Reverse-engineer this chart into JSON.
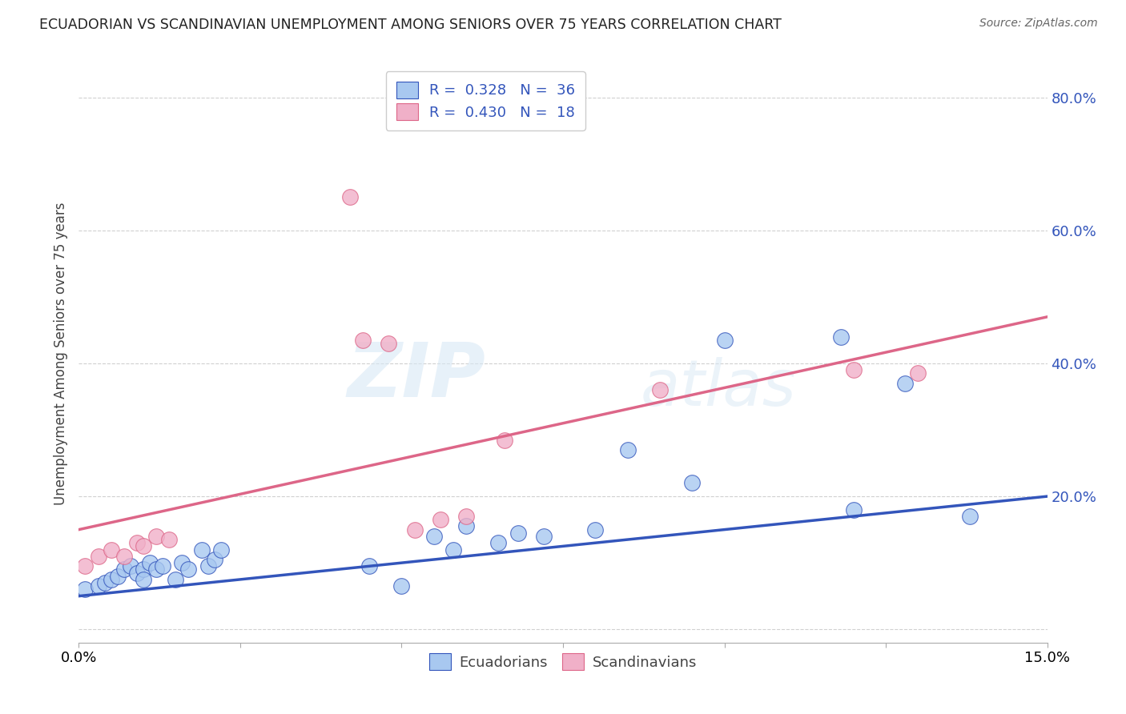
{
  "title": "ECUADORIAN VS SCANDINAVIAN UNEMPLOYMENT AMONG SENIORS OVER 75 YEARS CORRELATION CHART",
  "source": "Source: ZipAtlas.com",
  "ylabel": "Unemployment Among Seniors over 75 years",
  "xlim": [
    0.0,
    0.15
  ],
  "ylim": [
    -0.02,
    0.85
  ],
  "yticks": [
    0.0,
    0.2,
    0.4,
    0.6,
    0.8
  ],
  "ytick_labels": [
    "",
    "20.0%",
    "40.0%",
    "60.0%",
    "80.0%"
  ],
  "xticks": [
    0.0,
    0.025,
    0.05,
    0.075,
    0.1,
    0.125,
    0.15
  ],
  "background_color": "#ffffff",
  "grid_color": "#d0d0d0",
  "blue_color": "#a8c8f0",
  "pink_color": "#f0b0c8",
  "line_blue": "#3355bb",
  "line_pink": "#dd6688",
  "legend_text_color": "#3355bb",
  "R_blue": 0.328,
  "N_blue": 36,
  "R_pink": 0.43,
  "N_pink": 18,
  "ecuadorians_x": [
    0.001,
    0.003,
    0.004,
    0.005,
    0.006,
    0.007,
    0.008,
    0.009,
    0.01,
    0.01,
    0.011,
    0.012,
    0.013,
    0.015,
    0.016,
    0.017,
    0.019,
    0.02,
    0.021,
    0.022,
    0.045,
    0.05,
    0.055,
    0.058,
    0.06,
    0.065,
    0.068,
    0.072,
    0.08,
    0.085,
    0.095,
    0.1,
    0.118,
    0.12,
    0.128,
    0.138
  ],
  "ecuadorians_y": [
    0.06,
    0.065,
    0.07,
    0.075,
    0.08,
    0.09,
    0.095,
    0.085,
    0.09,
    0.075,
    0.1,
    0.09,
    0.095,
    0.075,
    0.1,
    0.09,
    0.12,
    0.095,
    0.105,
    0.12,
    0.095,
    0.065,
    0.14,
    0.12,
    0.155,
    0.13,
    0.145,
    0.14,
    0.15,
    0.27,
    0.22,
    0.435,
    0.44,
    0.18,
    0.37,
    0.17
  ],
  "scandinavians_x": [
    0.001,
    0.003,
    0.005,
    0.007,
    0.009,
    0.01,
    0.012,
    0.014,
    0.042,
    0.044,
    0.048,
    0.052,
    0.056,
    0.06,
    0.066,
    0.09,
    0.12,
    0.13
  ],
  "scandinavians_y": [
    0.095,
    0.11,
    0.12,
    0.11,
    0.13,
    0.125,
    0.14,
    0.135,
    0.65,
    0.435,
    0.43,
    0.15,
    0.165,
    0.17,
    0.285,
    0.36,
    0.39,
    0.385
  ],
  "watermark_zip": "ZIP",
  "watermark_atlas": "atlas",
  "blue_line_x0": 0.0,
  "blue_line_y0": 0.05,
  "blue_line_x1": 0.15,
  "blue_line_y1": 0.2,
  "pink_line_x0": 0.0,
  "pink_line_y0": 0.15,
  "pink_line_x1": 0.15,
  "pink_line_y1": 0.47
}
